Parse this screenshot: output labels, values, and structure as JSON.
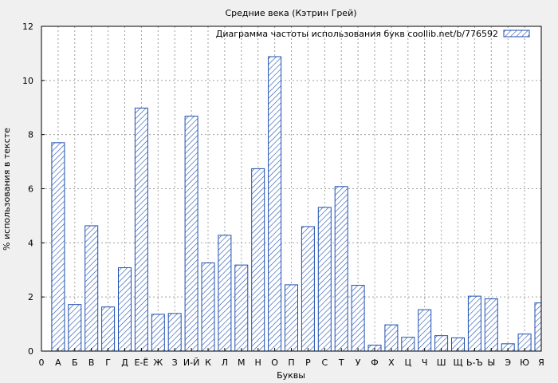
{
  "chart_data": {
    "type": "bar",
    "title": "Средние века (Кэтрин Грей)",
    "xlabel": "Буквы",
    "ylabel": "% использования в тексте",
    "ylim": [
      0,
      12
    ],
    "yticks": [
      0,
      2,
      4,
      6,
      8,
      10,
      12
    ],
    "x_tick_labels": [
      "0",
      "А",
      "Б",
      "В",
      "Г",
      "Д",
      "Е-Ё",
      "Ж",
      "З",
      "И-Й",
      "К",
      "Л",
      "М",
      "Н",
      "О",
      "П",
      "Р",
      "С",
      "Т",
      "У",
      "Ф",
      "Х",
      "Ц",
      "Ч",
      "Ш",
      "Щ",
      "Ь-Ъ",
      "Ы",
      "Э",
      "Ю",
      "Я"
    ],
    "categories": [
      "А",
      "Б",
      "В",
      "Г",
      "Д",
      "Е-Ё",
      "Ж",
      "З",
      "И-Й",
      "К",
      "Л",
      "М",
      "Н",
      "О",
      "П",
      "Р",
      "С",
      "Т",
      "У",
      "Ф",
      "Х",
      "Ц",
      "Ч",
      "Ш",
      "Щ",
      "Ь-Ъ",
      "Ы",
      "Э",
      "Ю",
      "Я"
    ],
    "series": [
      {
        "name": "Диаграмма частоты использования букв coollib.net/b/776592",
        "values": [
          7.7,
          1.72,
          4.63,
          1.63,
          3.08,
          8.98,
          1.36,
          1.39,
          8.68,
          3.26,
          4.28,
          3.18,
          6.74,
          10.88,
          2.45,
          4.6,
          5.31,
          6.08,
          2.43,
          0.22,
          0.97,
          0.51,
          1.53,
          0.57,
          0.49,
          2.03,
          1.93,
          0.27,
          0.63,
          1.78
        ]
      }
    ],
    "grid": true,
    "legend_position": "top-right",
    "colors": {
      "bar_stroke": "#1e4fb0",
      "bar_hatch": "#1e4fb0",
      "bar_fill": "#ffffff",
      "background": "#f0f0f0",
      "plot_background": "#ffffff"
    }
  }
}
